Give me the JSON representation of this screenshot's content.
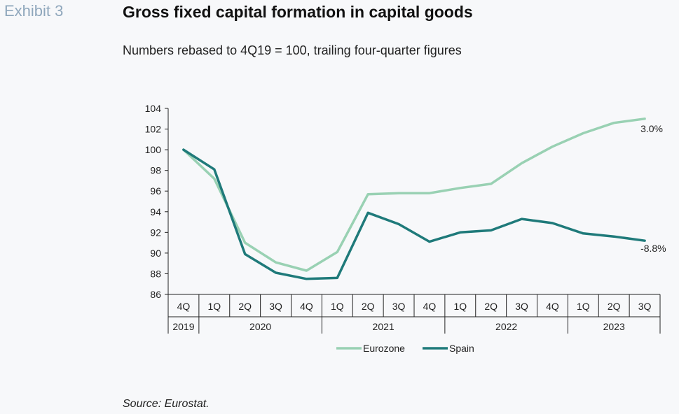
{
  "header": {
    "exhibit": "Exhibit 3",
    "title": "Gross fixed capital formation in capital goods",
    "subtitle": "Numbers rebased to 4Q19 = 100, trailing four-quarter figures"
  },
  "footer": {
    "source": "Source: Eurostat."
  },
  "chart_data": {
    "type": "line",
    "x": [
      "4Q",
      "1Q",
      "2Q",
      "3Q",
      "4Q",
      "1Q",
      "2Q",
      "3Q",
      "4Q",
      "1Q",
      "2Q",
      "3Q",
      "4Q",
      "1Q",
      "2Q",
      "3Q"
    ],
    "year_groups": [
      {
        "label": "2019",
        "count": 1
      },
      {
        "label": "2020",
        "count": 4
      },
      {
        "label": "2021",
        "count": 4
      },
      {
        "label": "2022",
        "count": 4
      },
      {
        "label": "2023",
        "count": 3
      }
    ],
    "ylim": [
      86,
      104
    ],
    "yticks": [
      "86",
      "88",
      "90",
      "92",
      "94",
      "96",
      "98",
      "100",
      "102",
      "104"
    ],
    "grid": false,
    "legend_position": "bottom",
    "series": [
      {
        "name": "Eurozone",
        "color": "#99d1b3",
        "values": [
          100,
          97.2,
          91.0,
          89.1,
          88.3,
          90.1,
          95.7,
          95.8,
          95.8,
          96.3,
          96.7,
          98.7,
          100.3,
          101.6,
          102.6,
          103.0
        ],
        "end_label": "3.0%"
      },
      {
        "name": "Spain",
        "color": "#1f7a7a",
        "values": [
          100,
          98.1,
          89.9,
          88.1,
          87.5,
          87.6,
          93.9,
          92.8,
          91.1,
          92.0,
          92.2,
          93.3,
          92.9,
          91.9,
          91.6,
          91.2
        ],
        "end_label": "-8.8%"
      }
    ]
  }
}
